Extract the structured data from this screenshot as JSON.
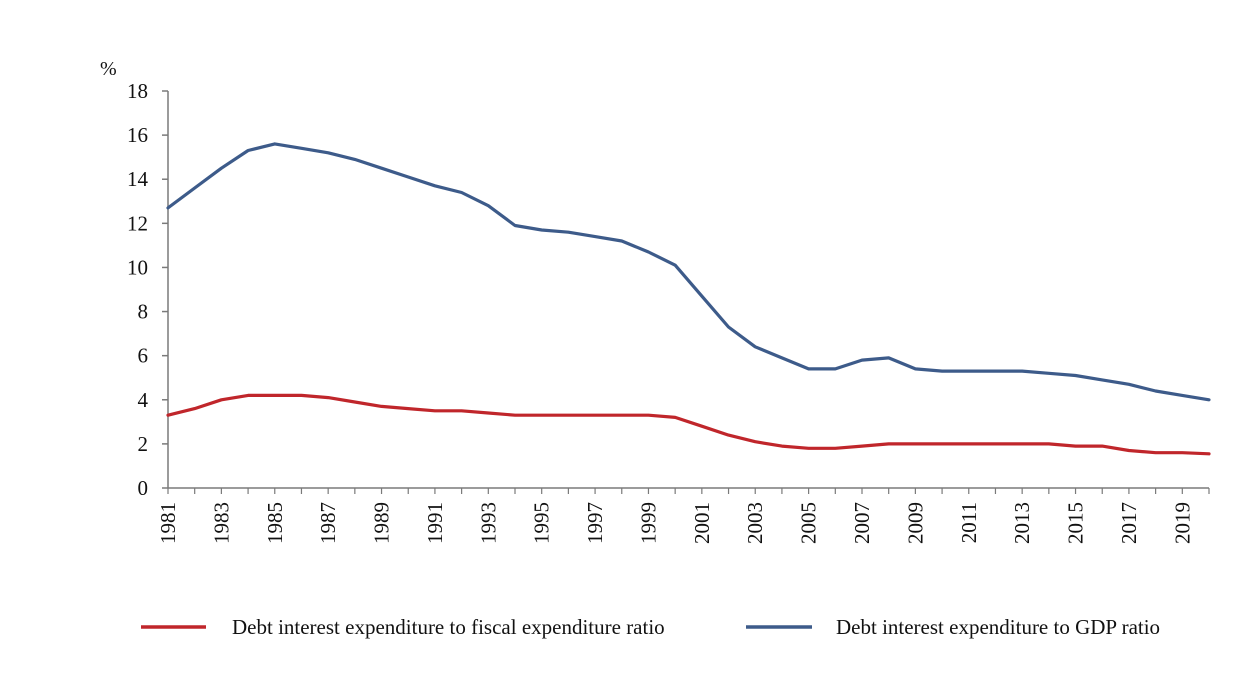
{
  "chart_data": {
    "type": "line",
    "y_unit": "%",
    "ylim": [
      0,
      18
    ],
    "y_ticks": [
      0,
      2,
      4,
      6,
      8,
      10,
      12,
      14,
      16,
      18
    ],
    "x_tick_labels": [
      "1981",
      "1983",
      "1985",
      "1987",
      "1989",
      "1991",
      "1993",
      "1995",
      "1997",
      "1999",
      "2001",
      "2003",
      "2005",
      "2007",
      "2009",
      "2011",
      "2013",
      "2015",
      "2017",
      "2019"
    ],
    "x": [
      1981,
      1982,
      1983,
      1984,
      1985,
      1986,
      1987,
      1988,
      1989,
      1990,
      1991,
      1992,
      1993,
      1994,
      1995,
      1996,
      1997,
      1998,
      1999,
      2000,
      2001,
      2002,
      2003,
      2004,
      2005,
      2006,
      2007,
      2008,
      2009,
      2010,
      2011,
      2012,
      2013,
      2014,
      2015,
      2016,
      2017,
      2018,
      2019,
      2020
    ],
    "series": [
      {
        "name": "Debt interest expenditure to fiscal expenditure ratio",
        "color": "#c0262b",
        "values": [
          3.3,
          3.6,
          4.0,
          4.2,
          4.2,
          4.2,
          4.1,
          3.9,
          3.7,
          3.6,
          3.5,
          3.5,
          3.4,
          3.3,
          3.3,
          3.3,
          3.3,
          3.3,
          3.3,
          3.2,
          2.8,
          2.4,
          2.1,
          1.9,
          1.8,
          1.8,
          1.9,
          2.0,
          2.0,
          2.0,
          2.0,
          2.0,
          2.0,
          2.0,
          1.9,
          1.9,
          1.7,
          1.6,
          1.6,
          1.55
        ]
      },
      {
        "name": "Debt interest expenditure to GDP ratio",
        "color": "#3d5b8a",
        "values": [
          12.7,
          13.6,
          14.5,
          15.3,
          15.6,
          15.4,
          15.2,
          14.9,
          14.5,
          14.1,
          13.7,
          13.4,
          12.8,
          11.9,
          11.7,
          11.6,
          11.4,
          11.2,
          10.7,
          10.1,
          8.7,
          7.3,
          6.4,
          5.9,
          5.4,
          5.4,
          5.8,
          5.9,
          5.4,
          5.3,
          5.3,
          5.3,
          5.3,
          5.2,
          5.1,
          4.9,
          4.7,
          4.4,
          4.2,
          4.0
        ]
      }
    ],
    "grid": false,
    "legend_position": "bottom"
  }
}
